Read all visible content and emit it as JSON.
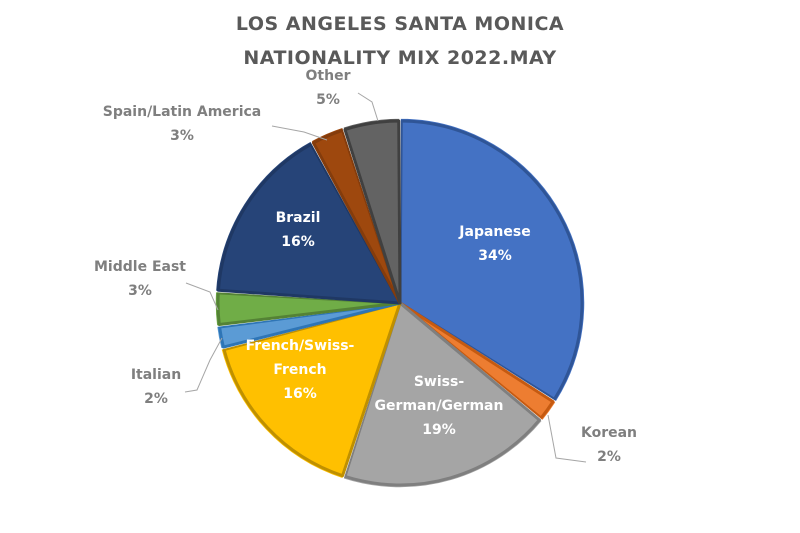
{
  "chart_data": {
    "type": "pie",
    "title": [
      "LOS ANGELES SANTA MONICA",
      "NATIONALITY MIX 2022.MAY"
    ],
    "start_angle_deg": 0,
    "direction": "clockwise",
    "slices": [
      {
        "name": "Japanese",
        "label_lines": [
          "Japanese"
        ],
        "value": 34,
        "label": "34%",
        "color": "#4472c4",
        "border": "#2f5597"
      },
      {
        "name": "Korean",
        "label_lines": [
          "Korean"
        ],
        "value": 2,
        "label": "2%",
        "color": "#ed7d31",
        "border": "#c55a11"
      },
      {
        "name": "Swiss-German/German",
        "label_lines": [
          "Swiss-",
          "German/German"
        ],
        "value": 19,
        "label": "19%",
        "color": "#a5a5a5",
        "border": "#7f7f7f"
      },
      {
        "name": "French/Swiss-French",
        "label_lines": [
          "French/Swiss-",
          "French"
        ],
        "value": 16,
        "label": "16%",
        "color": "#ffc000",
        "border": "#bf9000"
      },
      {
        "name": "Italian",
        "label_lines": [
          "Italian"
        ],
        "value": 2,
        "label": "2%",
        "color": "#5b9bd5",
        "border": "#2e75b6"
      },
      {
        "name": "Middle East",
        "label_lines": [
          "Middle East"
        ],
        "value": 3,
        "label": "3%",
        "color": "#70ad47",
        "border": "#548235"
      },
      {
        "name": "Brazil",
        "label_lines": [
          "Brazil"
        ],
        "value": 16,
        "label": "16%",
        "color": "#264478",
        "border": "#1f3864"
      },
      {
        "name": "Spain/Latin America",
        "label_lines": [
          "Spain/Latin America"
        ],
        "value": 3,
        "label": "3%",
        "color": "#9e480e",
        "border": "#843c0c"
      },
      {
        "name": "Other",
        "label_lines": [
          "Other"
        ],
        "value": 5,
        "label": "5%",
        "color": "#636363",
        "border": "#404040"
      }
    ]
  }
}
